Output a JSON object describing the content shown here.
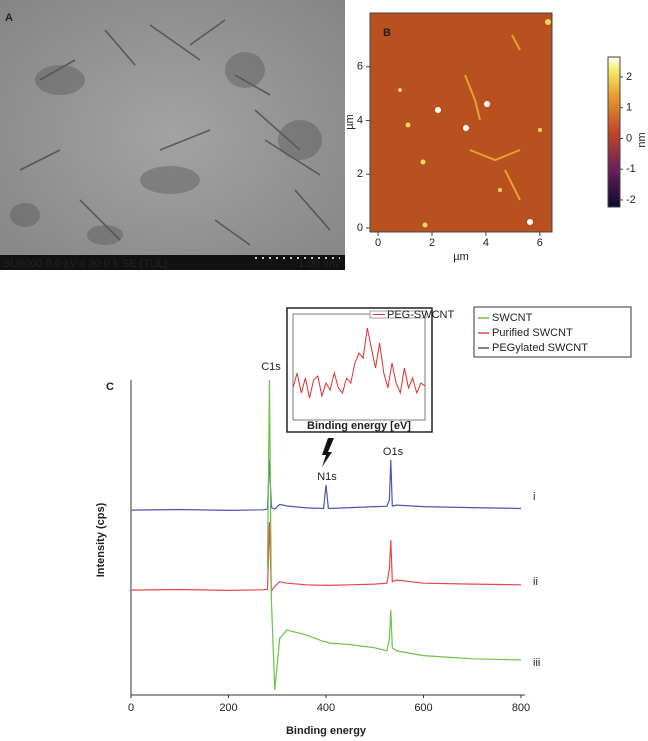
{
  "chart_data": [
    {
      "type": "image",
      "panel_label": "A",
      "caption": "SU8000 5.0 kV x 30.0 k SE (TUL)",
      "scale_bar": "1.00 um"
    },
    {
      "type": "heatmap",
      "panel_label": "B",
      "x_label": "µm",
      "y_label": "µm",
      "xlim": [
        -0.3,
        6.45
      ],
      "xticks": [
        0,
        2,
        4,
        6
      ],
      "ylim": [
        -0.15,
        8
      ],
      "yticks": [
        0,
        2,
        4,
        6
      ],
      "colorbar": {
        "label": "nm",
        "lim": [
          -2.23,
          2.65
        ],
        "ticks": [
          2,
          1,
          0,
          -1,
          -2
        ]
      }
    },
    {
      "type": "line",
      "panel_label": "C",
      "x_label": "Binding energy",
      "y_label": "Intensity (cps)",
      "xlim": [
        0,
        800
      ],
      "xticks": [
        0,
        200,
        400,
        600,
        800
      ],
      "ylim": [
        0,
        100
      ],
      "x": [
        0,
        100,
        200,
        270,
        280,
        284,
        288,
        295,
        305,
        320,
        360,
        395,
        400,
        405,
        450,
        500,
        525,
        530,
        533,
        536,
        545,
        600,
        700,
        800
      ],
      "series": [
        {
          "name": "PEGylated SWCNT",
          "end_label": "i",
          "color": "#4b56a8",
          "values": [
            58.7,
            58.9,
            58.6,
            58.8,
            59,
            74.6,
            59.5,
            59,
            60.5,
            60,
            59.4,
            59.2,
            66.7,
            59.2,
            59.5,
            59.8,
            59.9,
            62,
            74.6,
            60,
            60.3,
            59.8,
            59.5,
            59.2
          ]
        },
        {
          "name": "Purified SWCNT",
          "end_label": "ii",
          "color": "#e8474a",
          "values": [
            33.3,
            33.5,
            33.2,
            33.4,
            33.6,
            54.9,
            33,
            34.5,
            36,
            35.5,
            35,
            34.8,
            34.9,
            34.8,
            35,
            35.2,
            35.5,
            40,
            49.2,
            36,
            36.5,
            35.5,
            35.2,
            35
          ]
        },
        {
          "name": "SWCNT",
          "end_label": "iii",
          "color": "#6cc24a",
          "values": [
            null,
            null,
            null,
            null,
            40,
            100,
            30,
            1.6,
            18,
            20.6,
            19,
            17,
            17,
            16.5,
            16,
            15,
            14,
            18,
            27,
            15,
            14,
            12.5,
            11.5,
            11.1
          ]
        }
      ],
      "legend_order": [
        2,
        1,
        0
      ],
      "legend": "top-right",
      "annotations": [
        "C1s",
        "N1s",
        "O1s"
      ]
    },
    {
      "type": "line",
      "inset": true,
      "x_label": "Binding energy [eV]",
      "xlim": [
        392,
        408
      ],
      "ylim": [
        0,
        100
      ],
      "x": [
        392,
        392.5,
        393,
        393.5,
        394,
        394.5,
        395,
        395.5,
        396,
        396.5,
        397,
        397.5,
        398,
        398.5,
        399,
        399.5,
        400,
        400.5,
        401,
        401.5,
        402,
        402.5,
        403,
        403.5,
        404,
        404.5,
        405,
        405.5,
        406,
        406.5,
        407,
        407.5,
        408
      ],
      "series": [
        {
          "name": "PEG-SWCNT",
          "color": "#e03030",
          "values": [
            30,
            45,
            25,
            40,
            20,
            38,
            42,
            22,
            35,
            28,
            45,
            30,
            25,
            40,
            35,
            55,
            65,
            60,
            90,
            70,
            50,
            75,
            45,
            30,
            55,
            35,
            25,
            50,
            30,
            40,
            25,
            35,
            32
          ]
        }
      ]
    }
  ]
}
